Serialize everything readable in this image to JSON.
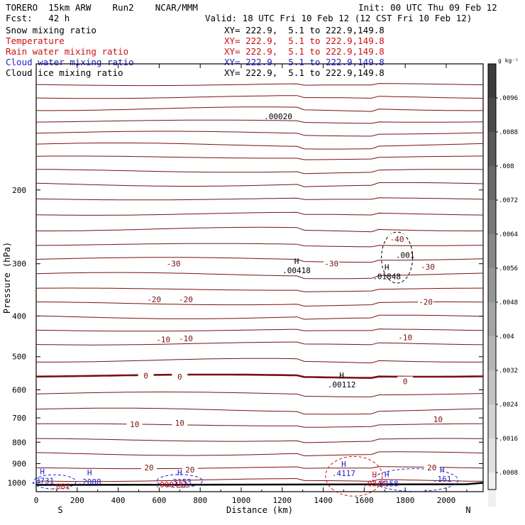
{
  "header": {
    "model": "TORERO  15km ARW    Run2    NCAR/MMM",
    "init": "Init: 00 UTC Thu 09 Feb 12",
    "fcst": "Fcst:   42 h",
    "valid": "Valid: 18 UTC Fri 10 Feb 12 (12 CST Fri 10 Feb 12)"
  },
  "legend": [
    {
      "name": "Snow mixing ratio",
      "xy": "XY= 222.9,  5.1 to 222.9,149.8",
      "color": "#000000"
    },
    {
      "name": "Temperature",
      "xy": "XY= 222.9,  5.1 to 222.9,149.8",
      "color": "#cc1111"
    },
    {
      "name": "Rain water mixing ratio",
      "xy": "XY= 222.9,  5.1 to 222.9,149.8",
      "color": "#cc1111"
    },
    {
      "name": "Cloud water mixing ratio",
      "xy": "XY= 222.9,  5.1 to 222.9,149.8",
      "color": "#2222cc"
    },
    {
      "name": "Cloud ice mixing ratio",
      "xy": "XY= 222.9,  5.1 to 222.9,149.8",
      "color": "#000000"
    }
  ],
  "chart_data": {
    "type": "contour cross-section",
    "xlabel": "Distance (km)",
    "ylabel": "Pressure (hPa)",
    "x_ticks": [
      0,
      200,
      400,
      600,
      800,
      1000,
      1200,
      1400,
      1600,
      1800,
      2000
    ],
    "y_ticks": [
      200,
      300,
      400,
      500,
      600,
      700,
      800,
      900,
      1000
    ],
    "xlim": [
      0,
      2180
    ],
    "ylim": [
      1050,
      100
    ],
    "y_scale": "log",
    "endpoints": {
      "left": "S",
      "right": "N"
    },
    "colorbar": {
      "unit": "g kg⁻¹",
      "labels": [
        ".0096",
        ".0088",
        ".008",
        ".0072",
        ".0064",
        ".0056",
        ".0048",
        ".004",
        ".0032",
        ".0024",
        ".0016",
        ".0008"
      ]
    },
    "temperature_labels": [
      {
        "text": "-30",
        "x": 670,
        "p": 300
      },
      {
        "text": "-30",
        "x": 1440,
        "p": 300
      },
      {
        "text": "-30",
        "x": 1910,
        "p": 305
      },
      {
        "text": "-40",
        "x": 1760,
        "p": 262
      },
      {
        "text": "-20",
        "x": 575,
        "p": 365
      },
      {
        "text": "-20",
        "x": 730,
        "p": 365
      },
      {
        "text": "-20",
        "x": 1900,
        "p": 370
      },
      {
        "text": "-10",
        "x": 620,
        "p": 455
      },
      {
        "text": "-10",
        "x": 730,
        "p": 452
      },
      {
        "text": "-10",
        "x": 1800,
        "p": 450
      },
      {
        "text": "0",
        "x": 535,
        "p": 555
      },
      {
        "text": "0",
        "x": 700,
        "p": 558
      },
      {
        "text": "0",
        "x": 1800,
        "p": 573
      },
      {
        "text": "10",
        "x": 480,
        "p": 725
      },
      {
        "text": "10",
        "x": 700,
        "p": 720
      },
      {
        "text": "10",
        "x": 1960,
        "p": 705
      },
      {
        "text": "20",
        "x": 550,
        "p": 920
      },
      {
        "text": "20",
        "x": 750,
        "p": 930
      },
      {
        "text": "20",
        "x": 1930,
        "p": 920
      }
    ],
    "extrema": [
      {
        "mark": "H",
        "value": ".00418",
        "x": 1270,
        "p": 310,
        "color": "#000000"
      },
      {
        "mark": "H",
        "value": ".01848",
        "x": 1710,
        "p": 320,
        "color": "#000000"
      },
      {
        "mark": "",
        "value": ".001",
        "x": 1800,
        "p": 285,
        "color": "#000000"
      },
      {
        "mark": "H",
        "value": ".00112",
        "x": 1490,
        "p": 580,
        "color": "#000000"
      },
      {
        "mark": "",
        "value": ".00020",
        "x": 1180,
        "p": 133,
        "color": "#000000"
      },
      {
        "mark": "H",
        "value": ".0731",
        "x": 30,
        "p": 985,
        "color": "#2222cc"
      },
      {
        "mark": "H",
        "value": ".2088",
        "x": 260,
        "p": 990,
        "color": "#2222cc"
      },
      {
        "mark": "H",
        "value": ".3153",
        "x": 700,
        "p": 990,
        "color": "#2222cc"
      },
      {
        "mark": "H",
        "value": ".4117",
        "x": 1500,
        "p": 945,
        "color": "#2222cc"
      },
      {
        "mark": "H",
        "value": ".3158",
        "x": 1710,
        "p": 1000,
        "color": "#2222cc"
      },
      {
        "mark": "H",
        "value": ".161",
        "x": 1980,
        "p": 975,
        "color": "#2222cc"
      },
      {
        "mark": "",
        "value": ".001",
        "x": 120,
        "p": 1015,
        "color": "#cc1111"
      },
      {
        "mark": "",
        "value": ".000432",
        "x": 660,
        "p": 1005,
        "color": "#cc1111"
      },
      {
        "mark": "H",
        "value": ".0344",
        "x": 1650,
        "p": 1000,
        "color": "#cc1111"
      }
    ]
  }
}
